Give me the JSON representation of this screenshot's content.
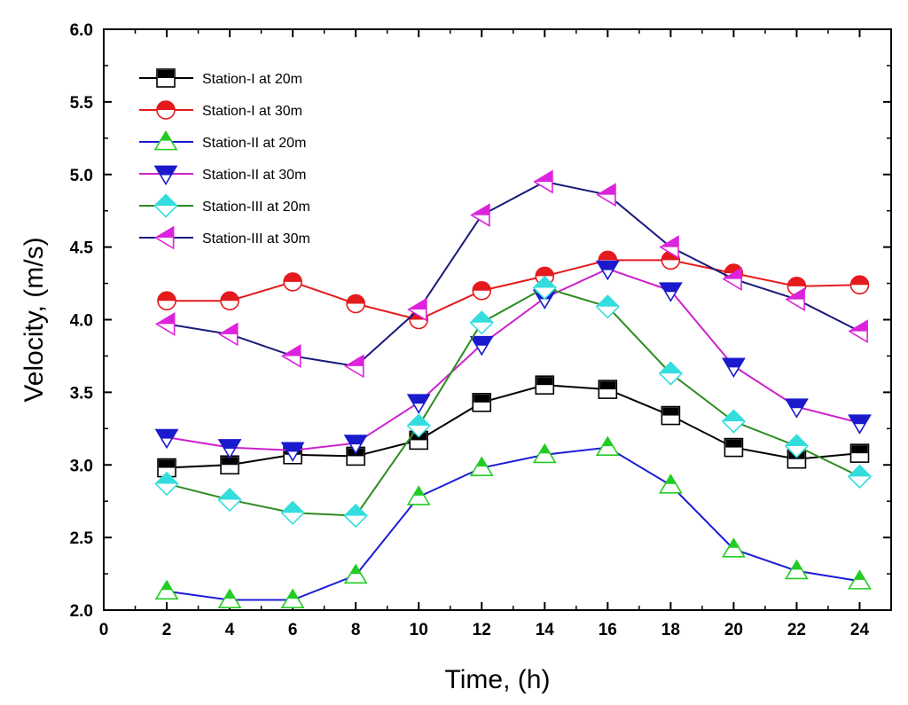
{
  "chart_data": {
    "type": "line",
    "title": "",
    "xlabel": "Time, (h)",
    "ylabel": "Velocity, (m/s)",
    "xlim": [
      0,
      25
    ],
    "ylim": [
      2.0,
      6.0
    ],
    "xticks": [
      0,
      2,
      4,
      6,
      8,
      10,
      12,
      14,
      16,
      18,
      20,
      22,
      24
    ],
    "yticks": [
      2.0,
      2.5,
      3.0,
      3.5,
      4.0,
      4.5,
      5.0,
      5.5,
      6.0
    ],
    "x": [
      2,
      4,
      6,
      8,
      10,
      12,
      14,
      16,
      18,
      20,
      22,
      24
    ],
    "legend_position": "top-left",
    "grid": false,
    "series": [
      {
        "name": "Station-I at 20m",
        "color": "#000000",
        "marker": "square",
        "fill": "#000000",
        "values": [
          2.98,
          3.0,
          3.07,
          3.06,
          3.17,
          3.43,
          3.55,
          3.52,
          3.34,
          3.12,
          3.04,
          3.08
        ]
      },
      {
        "name": "Station-I at 30m",
        "color": "#e41a1c",
        "marker": "circle",
        "fill": "#e41a1c",
        "values": [
          4.13,
          4.13,
          4.26,
          4.11,
          4.0,
          4.2,
          4.3,
          4.41,
          4.41,
          4.32,
          4.23,
          4.24
        ]
      },
      {
        "name": "Station-II at 20m",
        "color": "#1c1cd6",
        "marker": "triangle-up",
        "fill": "#22cc22",
        "values": [
          2.13,
          2.07,
          2.07,
          2.24,
          2.78,
          2.98,
          3.07,
          3.12,
          2.86,
          2.42,
          2.27,
          2.2
        ]
      },
      {
        "name": "Station-II at 30m",
        "color": "#cc22cc",
        "marker": "triangle-down",
        "fill": "#1a1acc",
        "values": [
          3.19,
          3.12,
          3.1,
          3.15,
          3.43,
          3.83,
          4.15,
          4.35,
          4.2,
          3.68,
          3.4,
          3.29
        ]
      },
      {
        "name": "Station-III at 20m",
        "color": "#2e8b22",
        "marker": "diamond",
        "fill": "#33dddd",
        "values": [
          2.87,
          2.76,
          2.67,
          2.65,
          3.27,
          3.98,
          4.22,
          4.09,
          3.63,
          3.3,
          3.13,
          2.92
        ]
      },
      {
        "name": "Station-III at 30m",
        "color": "#1a1a7a",
        "marker": "triangle-left",
        "fill": "#dd22dd",
        "values": [
          3.97,
          3.9,
          3.75,
          3.68,
          4.07,
          4.72,
          4.95,
          4.86,
          4.5,
          4.28,
          4.14,
          3.92
        ]
      }
    ]
  }
}
